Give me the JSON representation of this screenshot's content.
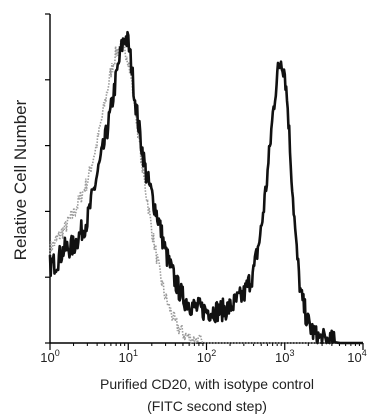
{
  "chart_data": {
    "type": "line",
    "title": "",
    "xlabel_line1": "Purified CD20, with isotype control",
    "xlabel_line2": "(FITC second step)",
    "ylabel": "Relative Cell Number",
    "x_scale": "log",
    "xlim": [
      1,
      10000
    ],
    "ylim": [
      0,
      100
    ],
    "grid": false,
    "legend": "none",
    "x_ticks": [
      {
        "value": 1,
        "base": "10",
        "exp": "0"
      },
      {
        "value": 10,
        "base": "10",
        "exp": "1"
      },
      {
        "value": 100,
        "base": "10",
        "exp": "2"
      },
      {
        "value": 1000,
        "base": "10",
        "exp": "3"
      },
      {
        "value": 10000,
        "base": "10",
        "exp": "4"
      }
    ],
    "series": [
      {
        "color": "#9a9a9a",
        "style": "dotted",
        "x": [
          1,
          1.5,
          2,
          3,
          4,
          5,
          6,
          7,
          8,
          9,
          10,
          12,
          15,
          20,
          25,
          30,
          40,
          50,
          60,
          80,
          100,
          150,
          300,
          1000,
          10000
        ],
        "y": [
          29,
          35,
          40,
          50,
          62,
          74,
          84,
          90,
          92,
          91,
          88,
          75,
          55,
          35,
          22,
          14,
          6,
          3,
          1.5,
          0.5,
          0,
          0,
          0,
          0,
          0
        ]
      },
      {
        "color": "#111111",
        "style": "solid",
        "x": [
          1,
          1.2,
          1.5,
          2,
          3,
          4,
          5,
          6,
          7,
          8,
          9,
          10,
          11,
          12,
          14,
          17,
          20,
          25,
          30,
          40,
          50,
          70,
          100,
          150,
          200,
          300,
          400,
          500,
          600,
          700,
          800,
          900,
          1000,
          1100,
          1200,
          1400,
          1600,
          2000,
          2500,
          3000,
          5000,
          10000
        ],
        "y": [
          24,
          25,
          29,
          30,
          38,
          52,
          62,
          72,
          82,
          90,
          95,
          93,
          86,
          77,
          65,
          52,
          46,
          37,
          28,
          19,
          14,
          11,
          10,
          10,
          11,
          15,
          22,
          35,
          52,
          70,
          83,
          88,
          84,
          72,
          55,
          30,
          15,
          6,
          2,
          1,
          0,
          0
        ]
      }
    ]
  }
}
